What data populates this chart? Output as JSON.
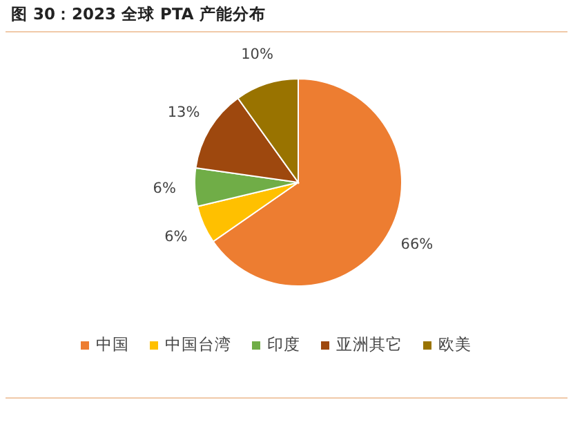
{
  "chart_data": {
    "type": "pie",
    "title": "图 30：2023 全球 PTA 产能分布",
    "categories": [
      "中国",
      "中国台湾",
      "印度",
      "亚洲其它",
      "欧美"
    ],
    "values": [
      66,
      6,
      6,
      13,
      10
    ],
    "colors": [
      "#ed7d31",
      "#ffc000",
      "#70ad47",
      "#9e480e",
      "#997300"
    ],
    "value_labels": [
      "66%",
      "6%",
      "6%",
      "13%",
      "10%"
    ],
    "legend": "bottom"
  }
}
